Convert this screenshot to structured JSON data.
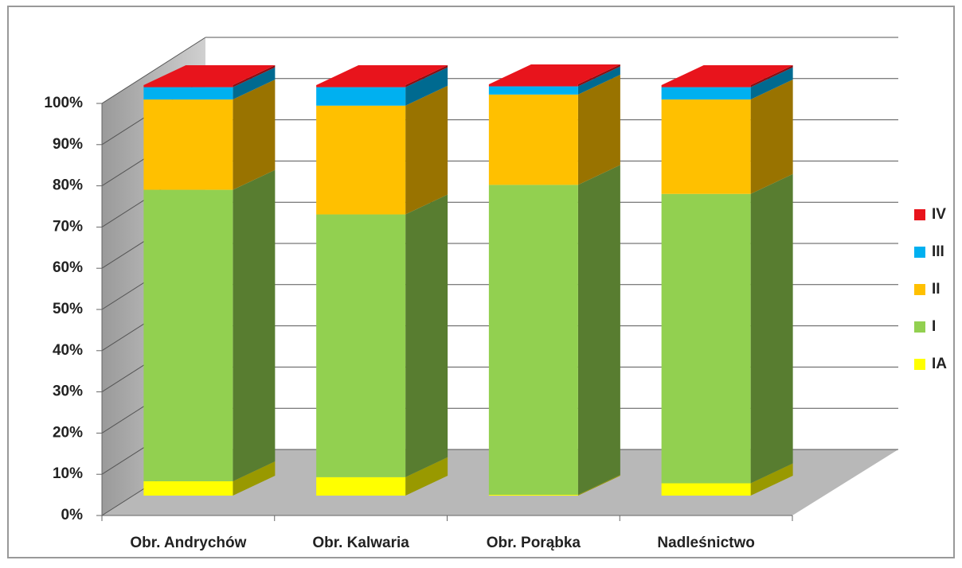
{
  "chart_data": {
    "type": "bar3d_stacked_percent",
    "categories": [
      "Obr. Andrychów",
      "Obr. Kalwaria",
      "Obr. Porąbka",
      "Nadleśnictwo"
    ],
    "series": [
      {
        "name": "IA",
        "color": "#ffff00",
        "values": [
          3.5,
          4.5,
          0.2,
          3
        ]
      },
      {
        "name": "I",
        "color": "#92d050",
        "values": [
          71,
          64,
          75.5,
          70.5
        ]
      },
      {
        "name": "II",
        "color": "#ffc000",
        "values": [
          22,
          26.5,
          22,
          23
        ]
      },
      {
        "name": "III",
        "color": "#00b0f0",
        "values": [
          3,
          4.5,
          2,
          3
        ]
      },
      {
        "name": "IV",
        "color": "#e8141c",
        "values": [
          0.5,
          0.5,
          0.5,
          0.5
        ]
      }
    ],
    "ylim": [
      0,
      100
    ],
    "yticks": [
      {
        "value": 0,
        "label": "0%"
      },
      {
        "value": 10,
        "label": "10%"
      },
      {
        "value": 20,
        "label": "20%"
      },
      {
        "value": 30,
        "label": "30%"
      },
      {
        "value": 40,
        "label": "40%"
      },
      {
        "value": 50,
        "label": "50%"
      },
      {
        "value": 60,
        "label": "60%"
      },
      {
        "value": 70,
        "label": "70%"
      },
      {
        "value": 80,
        "label": "80%"
      },
      {
        "value": 90,
        "label": "90%"
      },
      {
        "value": 100,
        "label": "100%"
      }
    ],
    "grid": true,
    "legend": "right"
  }
}
